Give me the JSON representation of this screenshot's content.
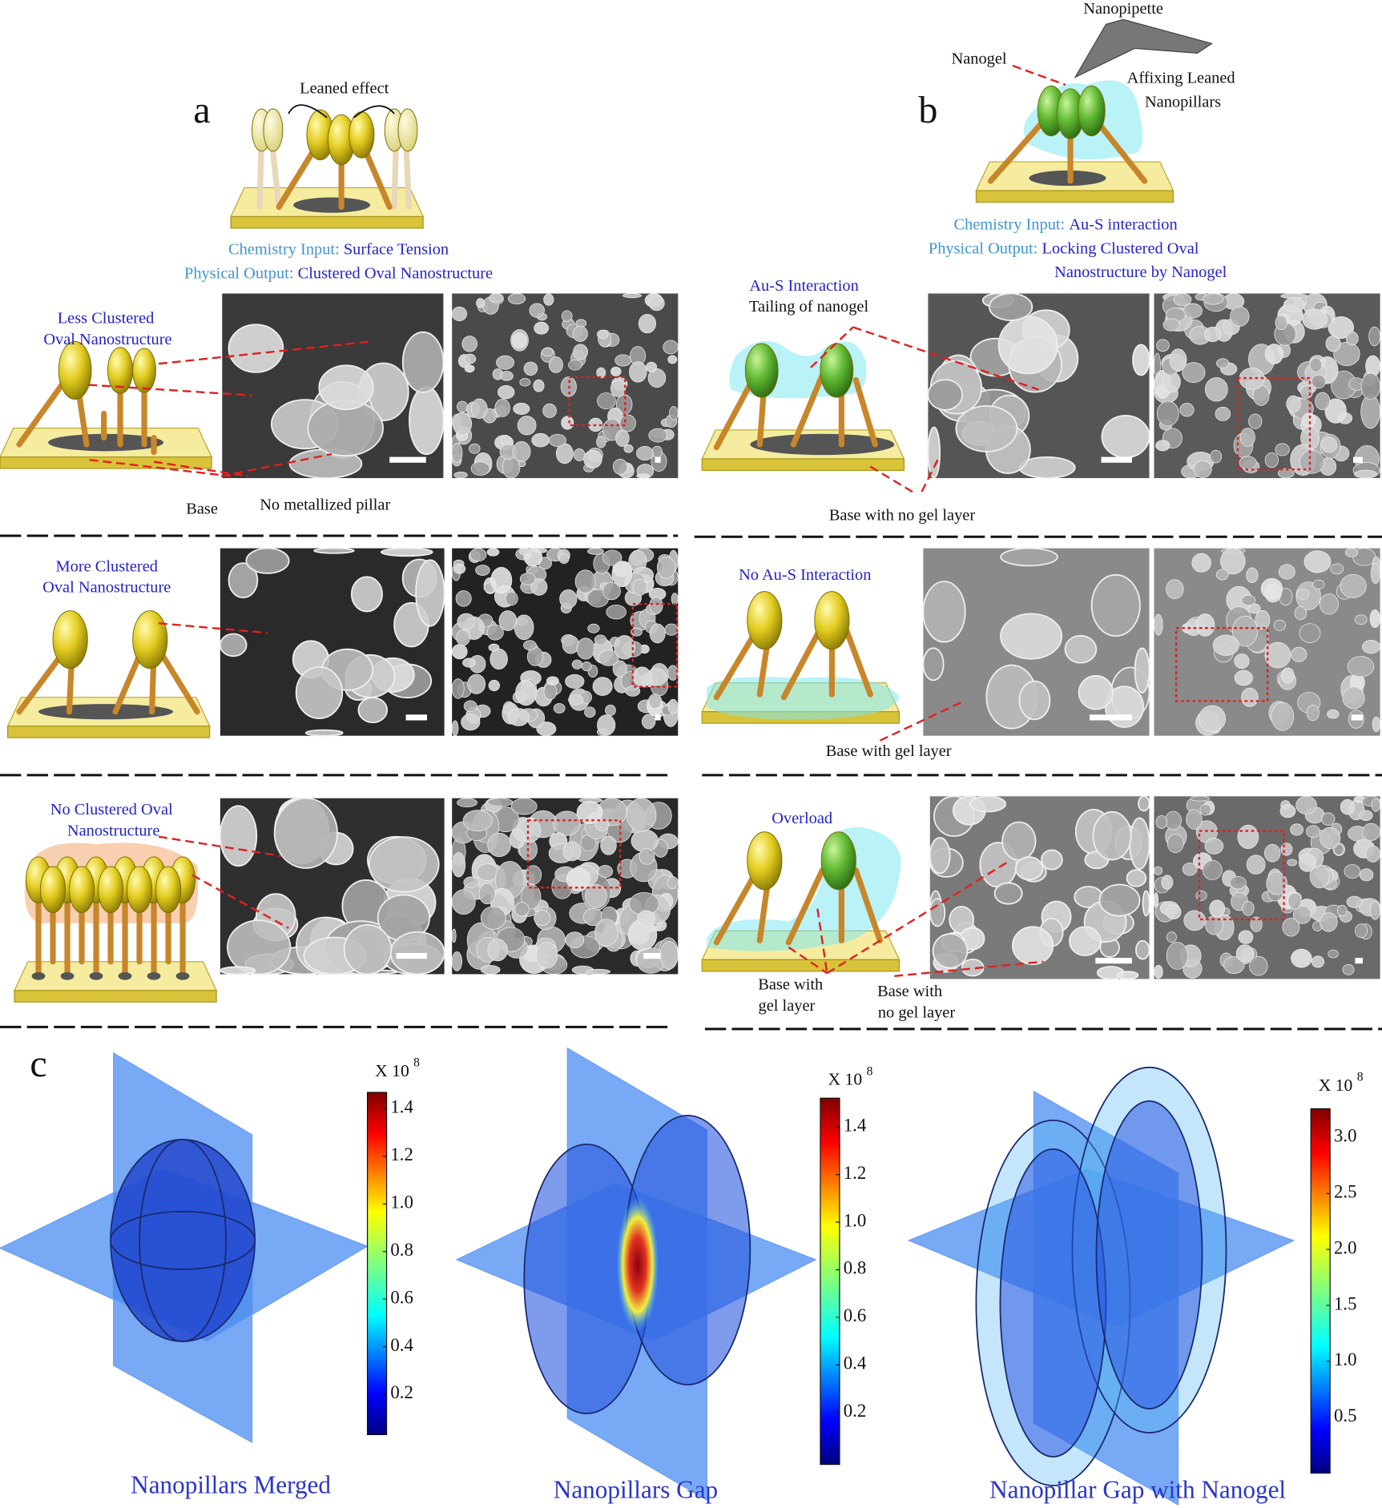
{
  "panel_a": {
    "label": "a",
    "annotation": "Leaned effect",
    "chemistry_input_label": "Chemistry Input:",
    "chemistry_input": "Surface Tension",
    "physical_output_label": "Physical Output:",
    "physical_output": "Clustered Oval Nanostructure",
    "rows": [
      {
        "title": [
          "Less Clustered",
          "Oval Nanostructure"
        ],
        "notes": [
          "Base",
          "No metallized pillar"
        ]
      },
      {
        "title": [
          "More Clustered",
          "Oval Nanostructure"
        ]
      },
      {
        "title": [
          "No Clustered Oval",
          "Nanostructure"
        ]
      }
    ]
  },
  "panel_b": {
    "label": "b",
    "annotations": [
      "Nanopipette",
      "Nanogel"
    ],
    "caption": [
      "Affixing Leaned",
      "Nanopillars"
    ],
    "chemistry_input_label": "Chemistry Input:",
    "chemistry_input": "Au-S interaction",
    "physical_output_label": "Physical Output:",
    "physical_output": [
      "Locking Clustered Oval",
      "Nanostructure by Nanogel"
    ],
    "rows": [
      {
        "title": "Au-S Interaction",
        "subtitle": "Tailing of nanogel",
        "notes": [
          "Base with no gel layer"
        ]
      },
      {
        "title": "No Au-S Interaction",
        "notes": [
          "Base with gel layer"
        ]
      },
      {
        "title": "Overload",
        "notes": [
          "Base with",
          "gel layer",
          "Base with",
          "no gel layer"
        ]
      }
    ]
  },
  "panel_c": {
    "label": "c",
    "simulations": [
      {
        "caption": "Nanopillars Merged",
        "scale_prefix": "X 10",
        "scale_exponent": "8",
        "ticks": [
          "1.4",
          "1.2",
          "1.0",
          "0.8",
          "0.6",
          "0.4",
          "0.2"
        ]
      },
      {
        "caption": "Nanopillars Gap",
        "scale_prefix": "X 10",
        "scale_exponent": "8",
        "ticks": [
          "1.4",
          "1.2",
          "1.0",
          "0.8",
          "0.6",
          "0.4",
          "0.2"
        ]
      },
      {
        "caption": "Nanopillar Gap with Nanogel",
        "scale_prefix": "X 10",
        "scale_exponent": "8",
        "ticks": [
          "3.0",
          "2.5",
          "2.0",
          "1.5",
          "1.0",
          "0.5"
        ]
      }
    ]
  }
}
